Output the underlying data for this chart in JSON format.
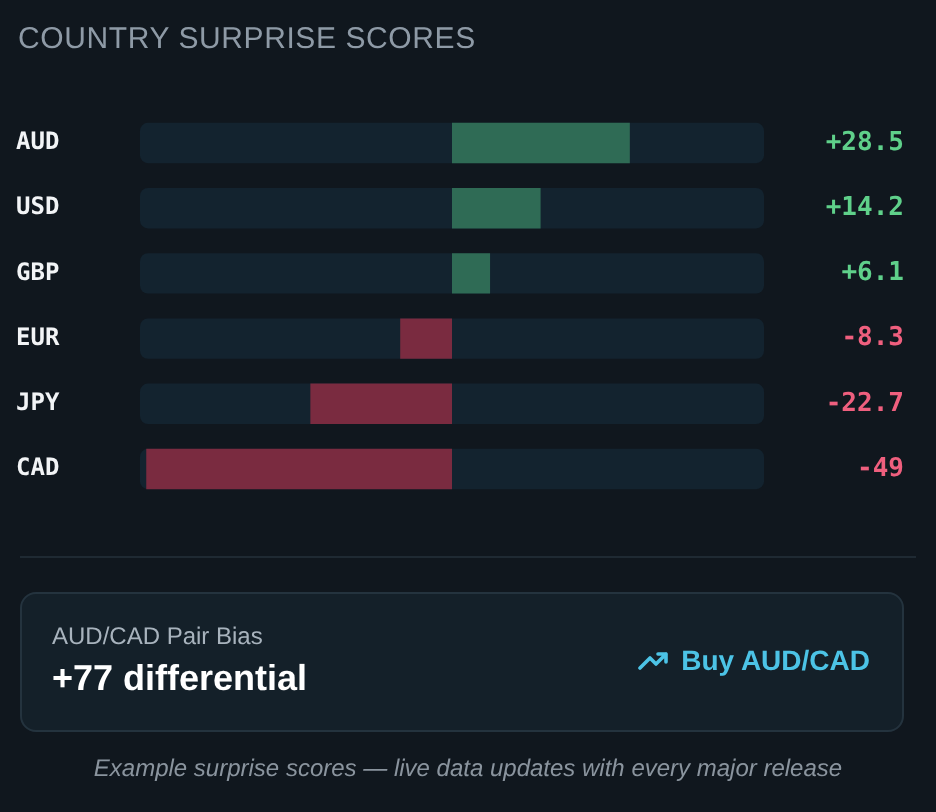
{
  "chart_data": {
    "type": "bar",
    "orientation": "horizontal",
    "title": "COUNTRY SURPRISE SCORES",
    "categories": [
      "AUD",
      "USD",
      "GBP",
      "EUR",
      "JPY",
      "CAD"
    ],
    "values": [
      28.5,
      14.2,
      6.1,
      -8.3,
      -22.7,
      -49
    ],
    "colors": [
      "#2f6b55",
      "#2f6b55",
      "#2f6b55",
      "#7a2b40",
      "#7a2b40",
      "#7a2b40"
    ],
    "value_labels": [
      "+28.5",
      "+14.2",
      "+6.1",
      "-8.3",
      "-22.7",
      "-49"
    ],
    "xlim": [
      -50,
      50
    ],
    "annotations": [
      "AUD/CAD Pair Bias",
      "+77 differential",
      "Buy AUD/CAD",
      "Example surprise scores — live data updates with every major release"
    ]
  }
}
